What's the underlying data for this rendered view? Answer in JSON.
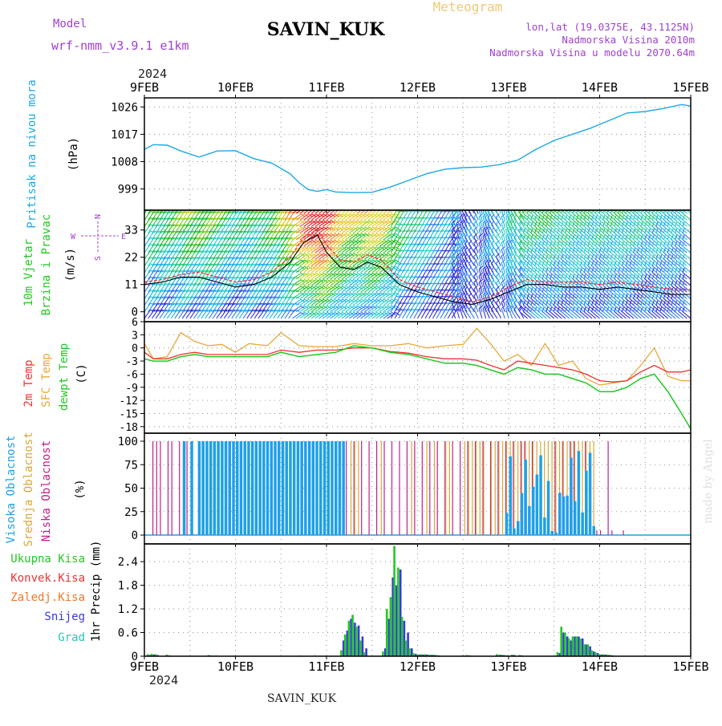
{
  "header": {
    "model_label": "Model",
    "model_value": "wrf-nmm_v3.9.1 e1km",
    "station": "SAVIN_KUK",
    "meteogram": "Meteogram",
    "lonlat": "lon,lat (19.0375E, 43.1125N)",
    "elev": "Nadmorska Visina 2010m",
    "elev_model": "Nadmorska Visina u modelu 2070.64m",
    "footer_station": "SAVIN_KUK",
    "watermark": "made by Angel"
  },
  "time_axis": {
    "year": "2024",
    "ticks": [
      "9FEB",
      "10FEB",
      "11FEB",
      "12FEB",
      "13FEB",
      "14FEB",
      "15FEB"
    ]
  },
  "colors": {
    "pressure": "#1ea8e8",
    "temp2m": "#ee3333",
    "sfc": "#e8a838",
    "dewpt": "#22c822",
    "high_cloud": "#1ea0e8",
    "mid_cloud": "#d8a83a",
    "low_cloud": "#c0208a",
    "precip_total": "#22c822",
    "precip_conv": "#ee3333",
    "precip_frz": "#f07828",
    "precip_snow": "#3838e0",
    "precip_grad": "#22c8b8",
    "left_labels_purple": "#a040d0"
  },
  "chart_data": [
    {
      "type": "line",
      "panel": "pressure",
      "ylabel_rotated": "Pritisak na nivou mora",
      "unit": "(hPa)",
      "yticks": [
        999,
        1008,
        1017,
        1026
      ],
      "ylim": [
        992,
        1029
      ],
      "x_days": [
        0,
        0.1,
        0.25,
        0.4,
        0.6,
        0.8,
        1.0,
        1.2,
        1.4,
        1.6,
        1.7,
        1.8,
        1.9,
        2.0,
        2.1,
        2.3,
        2.5,
        2.7,
        2.9,
        3.1,
        3.3,
        3.5,
        3.7,
        3.9,
        4.1,
        4.3,
        4.5,
        4.7,
        4.9,
        5.1,
        5.3,
        5.5,
        5.7,
        5.9,
        6.0
      ],
      "series": [
        {
          "name": "pressure",
          "values": [
            1012,
            1013.6,
            1013.4,
            1011.5,
            1009.5,
            1011.5,
            1011.6,
            1009,
            1007.5,
            1004,
            1001,
            998.8,
            998.2,
            998.8,
            998.0,
            997.8,
            997.9,
            999.6,
            1001.8,
            1004,
            1005.5,
            1006,
            1006.2,
            1007,
            1008.5,
            1012,
            1015,
            1017,
            1019,
            1021.5,
            1024,
            1024.5,
            1025.5,
            1026.8,
            1026.3
          ]
        }
      ]
    },
    {
      "type": "line",
      "panel": "wind",
      "ylabel_rotated_1": "10m Vjetar",
      "ylabel_rotated_2": "Brzina i Pravac",
      "unit": "(m/s)",
      "compass_n": "N",
      "compass_w": "W",
      "compass_e": "E",
      "compass_s": "S",
      "yticks": [
        0,
        11,
        22,
        33
      ],
      "ylim": [
        -4,
        41
      ],
      "x_days": [
        0,
        0.2,
        0.4,
        0.6,
        0.8,
        1.0,
        1.2,
        1.4,
        1.6,
        1.75,
        1.9,
        2.0,
        2.15,
        2.3,
        2.45,
        2.6,
        2.8,
        3.0,
        3.2,
        3.4,
        3.6,
        3.8,
        4.0,
        4.2,
        4.4,
        4.6,
        4.8,
        5.0,
        5.2,
        5.4,
        5.6,
        5.8,
        6.0
      ],
      "series": [
        {
          "name": "speed",
          "values": [
            11,
            12,
            14,
            14,
            12,
            10,
            11,
            14,
            20,
            28,
            31,
            24,
            18,
            17,
            20,
            18,
            11,
            8,
            6,
            4,
            3,
            5,
            8,
            11,
            11,
            10,
            10,
            9,
            10,
            9,
            8,
            7,
            7
          ]
        },
        {
          "name": "gust",
          "values": [
            12,
            13,
            15,
            16,
            14,
            12,
            13,
            16,
            22,
            30,
            33,
            27,
            21,
            20,
            23,
            21,
            13,
            10,
            8,
            6,
            4,
            6,
            10,
            13,
            12,
            12,
            12,
            11,
            12,
            11,
            10,
            9,
            9
          ]
        }
      ],
      "speed_bands_ms": [
        3,
        6,
        9,
        12,
        15,
        18,
        21,
        24,
        27,
        30,
        33,
        36
      ],
      "band_colors": [
        "#3030d8",
        "#3078f0",
        "#18b0f0",
        "#28d0c8",
        "#20c878",
        "#20c020",
        "#80d020",
        "#d0d820",
        "#f0c020",
        "#f08020",
        "#f04040",
        "#e01818"
      ]
    },
    {
      "type": "line",
      "panel": "temperature",
      "ylabel_rotated_1": "2m Temp",
      "ylabel_rotated_2": "SFC Temp",
      "ylabel_rotated_3": "dewpt Temp",
      "unit": "(C)",
      "yticks": [
        6,
        3,
        0,
        -3,
        -6,
        -9,
        -12,
        -15,
        -18
      ],
      "ylim": [
        -19.5,
        6
      ],
      "x_days": [
        0,
        0.1,
        0.25,
        0.4,
        0.55,
        0.7,
        0.85,
        1.0,
        1.15,
        1.35,
        1.5,
        1.7,
        1.9,
        2.1,
        2.3,
        2.5,
        2.7,
        2.9,
        3.1,
        3.3,
        3.5,
        3.65,
        3.8,
        3.95,
        4.1,
        4.25,
        4.4,
        4.55,
        4.7,
        4.85,
        5.0,
        5.15,
        5.3,
        5.45,
        5.6,
        5.75,
        5.9,
        6.0
      ],
      "series": [
        {
          "name": "2m Temp",
          "values": [
            -1,
            -2.5,
            -2.5,
            -1.5,
            -1,
            -1.5,
            -1.5,
            -1.5,
            -1.5,
            -1.5,
            -0.5,
            -1,
            -0.5,
            -0.5,
            0,
            0,
            -0.8,
            -1.2,
            -2,
            -2.5,
            -2.5,
            -2.8,
            -4,
            -5,
            -3,
            -3.5,
            -4,
            -4.5,
            -5,
            -6,
            -7.5,
            -7.8,
            -7.5,
            -5.5,
            -4,
            -5.5,
            -5.5,
            -5
          ]
        },
        {
          "name": "SFC Temp",
          "values": [
            1,
            -2.5,
            -2,
            3.5,
            1.5,
            0.5,
            0.8,
            -1,
            1,
            0.5,
            3.5,
            0.5,
            0.3,
            0.3,
            1,
            0.5,
            0.5,
            1,
            0,
            0.5,
            0.8,
            4.5,
            1,
            -3,
            -1.5,
            -4,
            1,
            -4,
            -3,
            -7,
            -8.5,
            -8,
            -7.5,
            -4,
            0,
            -6.5,
            -7.5,
            -7.5
          ]
        },
        {
          "name": "dewpt Temp",
          "values": [
            -2.5,
            -3,
            -3,
            -2,
            -1.5,
            -2,
            -2,
            -2,
            -2,
            -2,
            -1,
            -2,
            -1.5,
            -1,
            0.5,
            0,
            -1,
            -1.5,
            -2.5,
            -3.5,
            -3.5,
            -4,
            -5,
            -6,
            -4.5,
            -5,
            -6,
            -6,
            -7,
            -8,
            -10,
            -10,
            -9,
            -7,
            -6,
            -10,
            -15,
            -18.5
          ]
        }
      ]
    },
    {
      "type": "bar",
      "panel": "cloud",
      "ylabel_rotated_1": "Visoka Oblacnost",
      "ylabel_rotated_2": "Srednja Oblacnost",
      "ylabel_rotated_3": "Niska Oblacnost",
      "unit": "(%)",
      "yticks": [
        0,
        25,
        50,
        75,
        100
      ],
      "ylim": [
        0,
        100
      ],
      "note": "per-hour cloud cover fractions, 0-144 h"
    },
    {
      "type": "bar",
      "panel": "precip",
      "ylabel_rotated_1": "1hr Precip",
      "unit": "(mm)",
      "legend": [
        "Ukupna Kisa",
        "Konvek.Kisa",
        "Zaledj.Kisa",
        "Snijeg",
        "Grad"
      ],
      "yticks": [
        0,
        0.6,
        1.2,
        1.8,
        2.4
      ],
      "ylim": [
        0,
        2.85
      ],
      "bars_h_total_snow": [
        [
          1,
          0.05,
          0.03
        ],
        [
          2,
          0.06,
          0.04
        ],
        [
          3,
          0.05,
          0.03
        ],
        [
          6,
          0.04,
          0.02
        ],
        [
          17,
          0.03,
          0.02
        ],
        [
          19,
          0.02,
          0.01
        ],
        [
          41,
          0.02,
          0.01
        ],
        [
          45,
          0.02,
          0.01
        ],
        [
          52,
          0.15,
          0.4
        ],
        [
          53,
          0.55,
          0.65
        ],
        [
          54,
          0.9,
          0.95
        ],
        [
          55,
          1.05,
          0.85
        ],
        [
          56,
          0.75,
          0.78
        ],
        [
          57,
          0.4,
          0.5
        ],
        [
          58,
          0.1,
          0.2
        ],
        [
          63,
          0.12,
          0.2
        ],
        [
          64,
          1.2,
          0.95
        ],
        [
          65,
          1.5,
          2.0
        ],
        [
          66,
          2.8,
          1.8
        ],
        [
          67,
          2.25,
          2.2
        ],
        [
          68,
          1.0,
          0.9
        ],
        [
          69,
          0.4,
          0.6
        ],
        [
          70,
          0.2,
          0.2
        ],
        [
          71,
          0.08,
          0.06
        ],
        [
          72,
          0.05,
          0.04
        ],
        [
          73,
          0.05,
          0.04
        ],
        [
          74,
          0.05,
          0.04
        ],
        [
          75,
          0.04,
          0.03
        ],
        [
          76,
          0.04,
          0.03
        ],
        [
          77,
          0.03,
          0.02
        ],
        [
          84,
          0.02,
          0.01
        ],
        [
          85,
          0.03,
          0.02
        ],
        [
          86,
          0.02,
          0.01
        ],
        [
          93,
          0.05,
          0.03
        ],
        [
          94,
          0.04,
          0.03
        ],
        [
          95,
          0.03,
          0.02
        ],
        [
          97,
          0.04,
          0.03
        ],
        [
          99,
          0.03,
          0.02
        ],
        [
          109,
          0.1,
          0.08
        ],
        [
          110,
          0.75,
          0.6
        ],
        [
          111,
          0.6,
          0.5
        ],
        [
          112,
          0.45,
          0.4
        ],
        [
          113,
          0.5,
          0.5
        ],
        [
          114,
          0.5,
          0.5
        ],
        [
          115,
          0.45,
          0.45
        ],
        [
          116,
          0.3,
          0.3
        ],
        [
          117,
          0.3,
          0.25
        ],
        [
          118,
          0.15,
          0.12
        ],
        [
          119,
          0.1,
          0.08
        ],
        [
          120,
          0.05,
          0.04
        ],
        [
          121,
          0.05,
          0.04
        ],
        [
          122,
          0.04,
          0.03
        ],
        [
          123,
          0.03,
          0.02
        ]
      ]
    }
  ]
}
